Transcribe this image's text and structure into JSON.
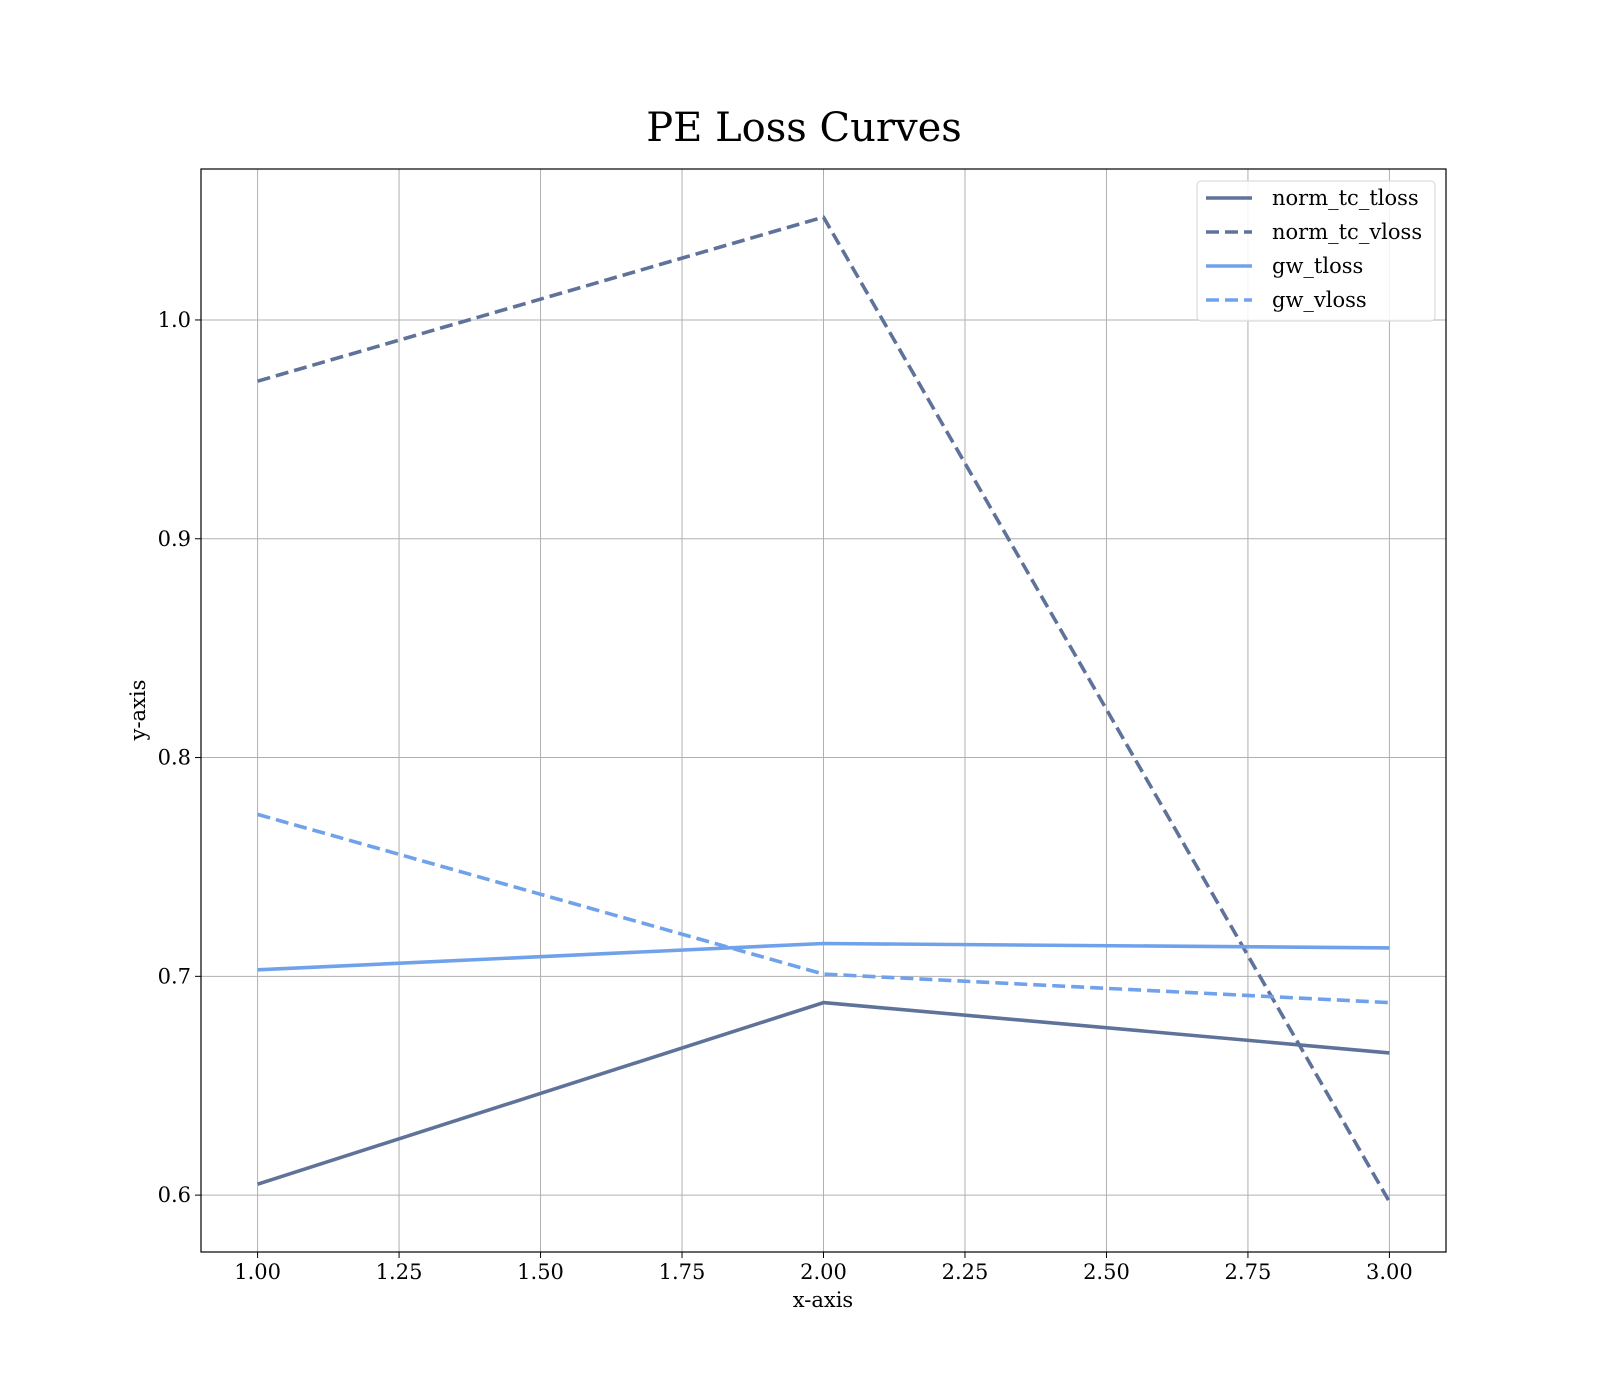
{
  "chart_data": {
    "type": "line",
    "title": "PE Loss Curves",
    "xlabel": "x-axis",
    "ylabel": "y-axis",
    "xlim": [
      0.9,
      3.1
    ],
    "ylim": [
      0.574,
      1.069
    ],
    "x_ticks": [
      1.0,
      1.25,
      1.5,
      1.75,
      2.0,
      2.25,
      2.5,
      2.75,
      3.0
    ],
    "x_tick_labels": [
      "1.00",
      "1.25",
      "1.50",
      "1.75",
      "2.00",
      "2.25",
      "2.50",
      "2.75",
      "3.00"
    ],
    "y_ticks": [
      0.6,
      0.7,
      0.8,
      0.9,
      1.0
    ],
    "y_tick_labels": [
      "0.6",
      "0.7",
      "0.8",
      "0.9",
      "1.0"
    ],
    "grid": true,
    "legend_position": "top-right",
    "x": [
      1.0,
      2.0,
      3.0
    ],
    "series": [
      {
        "name": "norm_tc_tloss",
        "values": [
          0.605,
          0.688,
          0.665
        ],
        "color": "#5f739a",
        "style": "solid"
      },
      {
        "name": "norm_tc_vloss",
        "values": [
          0.972,
          1.047,
          0.597
        ],
        "color": "#5f739a",
        "style": "dashed"
      },
      {
        "name": "gw_tloss",
        "values": [
          0.703,
          0.715,
          0.713
        ],
        "color": "#70a2ec",
        "style": "solid"
      },
      {
        "name": "gw_vloss",
        "values": [
          0.774,
          0.701,
          0.688
        ],
        "color": "#70a2ec",
        "style": "dashed"
      }
    ]
  }
}
